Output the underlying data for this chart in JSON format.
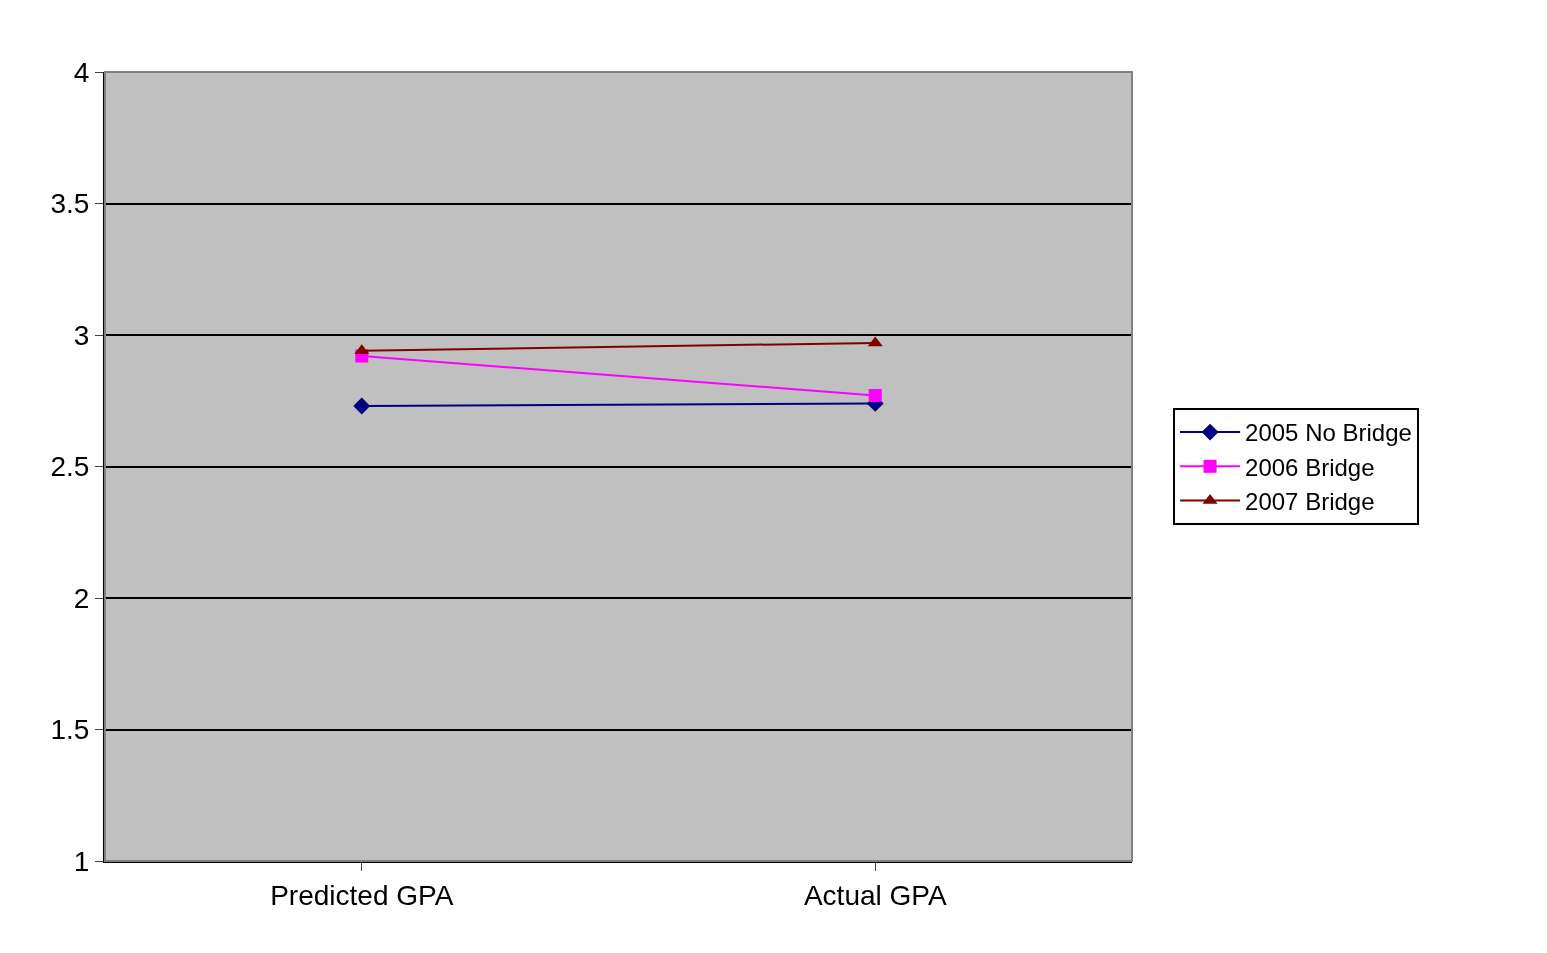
{
  "chart_data": {
    "type": "line",
    "categories": [
      "Predicted GPA",
      "Actual GPA"
    ],
    "series": [
      {
        "name": "2005 No Bridge",
        "color": "#000080",
        "values": [
          2.73,
          2.74
        ],
        "marker": "diamond"
      },
      {
        "name": "2006 Bridge",
        "color": "#ff00ff",
        "values": [
          2.92,
          2.77
        ],
        "marker": "square"
      },
      {
        "name": "2007 Bridge",
        "color": "#800000",
        "values": [
          2.94,
          2.97
        ],
        "marker": "triangle"
      }
    ],
    "ylim": [
      1,
      4
    ],
    "yticks": [
      1,
      1.5,
      2,
      2.5,
      3,
      3.5,
      4
    ],
    "grid": "y",
    "legend": "right",
    "line_style": "solid"
  }
}
